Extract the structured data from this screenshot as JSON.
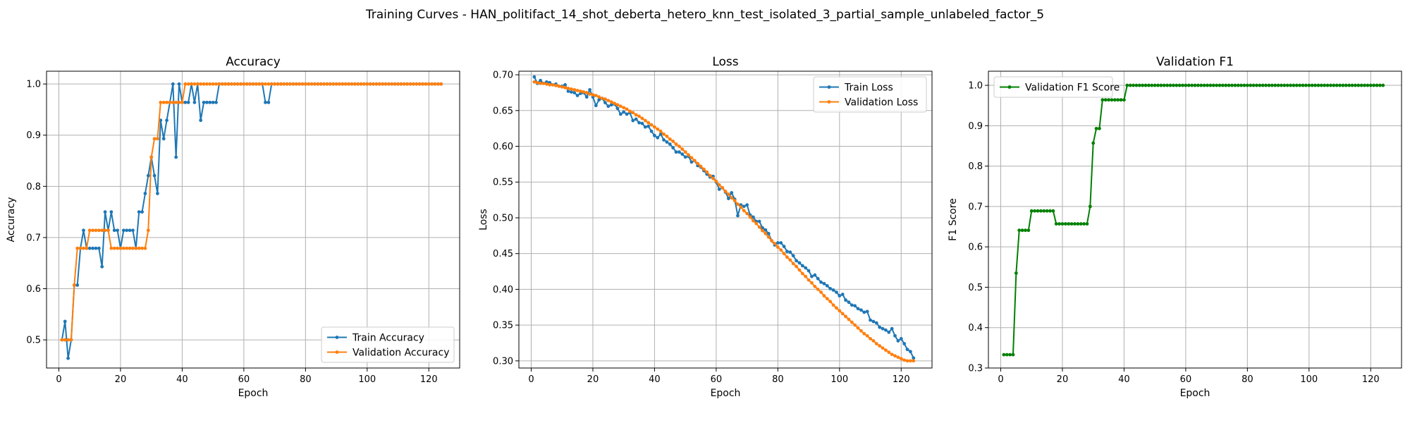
{
  "figure": {
    "suptitle": "Training Curves - HAN_politifact_14_shot_deberta_hetero_knn_test_isolated_3_partial_sample_unlabeled_factor_5"
  },
  "chart_data": [
    {
      "type": "line",
      "title": "Accuracy",
      "xlabel": "Epoch",
      "ylabel": "Accuracy",
      "xlim": [
        -4,
        130
      ],
      "ylim": [
        0.445,
        1.025
      ],
      "xticks": [
        0,
        20,
        40,
        60,
        80,
        100,
        120
      ],
      "yticks": [
        0.5,
        0.6,
        0.7,
        0.8,
        0.9,
        1.0
      ],
      "ytick_labels": [
        "0.5",
        "0.6",
        "0.7",
        "0.8",
        "0.9",
        "1.0"
      ],
      "grid": true,
      "legend_loc": "lower-right",
      "series": [
        {
          "name": "Train Accuracy",
          "color": "#1f77b4",
          "x_start": 1,
          "values": [
            0.5,
            0.536,
            0.464,
            0.5,
            0.607,
            0.607,
            0.679,
            0.714,
            0.679,
            0.679,
            0.679,
            0.679,
            0.679,
            0.643,
            0.75,
            0.714,
            0.75,
            0.714,
            0.714,
            0.679,
            0.714,
            0.714,
            0.714,
            0.714,
            0.679,
            0.75,
            0.75,
            0.786,
            0.821,
            0.857,
            0.821,
            0.786,
            0.929,
            0.893,
            0.929,
            0.964,
            1.0,
            0.857,
            1.0,
            0.964,
            0.964,
            0.964,
            1.0,
            0.964,
            1.0,
            0.929,
            0.964,
            0.964,
            0.964,
            0.964,
            0.964,
            1.0,
            1.0,
            1.0,
            1.0,
            1.0,
            1.0,
            1.0,
            1.0,
            1.0,
            1.0,
            1.0,
            1.0,
            1.0,
            1.0,
            1.0,
            0.964,
            0.964,
            1.0,
            1.0,
            1.0,
            1.0,
            1.0,
            1.0,
            1.0,
            1.0,
            1.0,
            1.0,
            1.0,
            1.0,
            1.0,
            1.0,
            1.0,
            1.0,
            1.0,
            1.0,
            1.0,
            1.0,
            1.0,
            1.0,
            1.0,
            1.0,
            1.0,
            1.0,
            1.0,
            1.0,
            1.0,
            1.0,
            1.0,
            1.0,
            1.0,
            1.0,
            1.0,
            1.0,
            1.0,
            1.0,
            1.0,
            1.0,
            1.0,
            1.0,
            1.0,
            1.0,
            1.0,
            1.0,
            1.0,
            1.0,
            1.0,
            1.0,
            1.0,
            1.0,
            1.0,
            1.0,
            1.0,
            1.0
          ]
        },
        {
          "name": "Validation Accuracy",
          "color": "#ff7f0e",
          "x_start": 1,
          "values": [
            0.5,
            0.5,
            0.5,
            0.5,
            0.607,
            0.679,
            0.679,
            0.679,
            0.679,
            0.714,
            0.714,
            0.714,
            0.714,
            0.714,
            0.714,
            0.714,
            0.679,
            0.679,
            0.679,
            0.679,
            0.679,
            0.679,
            0.679,
            0.679,
            0.679,
            0.679,
            0.679,
            0.679,
            0.714,
            0.857,
            0.893,
            0.893,
            0.964,
            0.964,
            0.964,
            0.964,
            0.964,
            0.964,
            0.964,
            0.964,
            1.0,
            1.0,
            1.0,
            1.0,
            1.0,
            1.0,
            1.0,
            1.0,
            1.0,
            1.0,
            1.0,
            1.0,
            1.0,
            1.0,
            1.0,
            1.0,
            1.0,
            1.0,
            1.0,
            1.0,
            1.0,
            1.0,
            1.0,
            1.0,
            1.0,
            1.0,
            1.0,
            1.0,
            1.0,
            1.0,
            1.0,
            1.0,
            1.0,
            1.0,
            1.0,
            1.0,
            1.0,
            1.0,
            1.0,
            1.0,
            1.0,
            1.0,
            1.0,
            1.0,
            1.0,
            1.0,
            1.0,
            1.0,
            1.0,
            1.0,
            1.0,
            1.0,
            1.0,
            1.0,
            1.0,
            1.0,
            1.0,
            1.0,
            1.0,
            1.0,
            1.0,
            1.0,
            1.0,
            1.0,
            1.0,
            1.0,
            1.0,
            1.0,
            1.0,
            1.0,
            1.0,
            1.0,
            1.0,
            1.0,
            1.0,
            1.0,
            1.0,
            1.0,
            1.0,
            1.0,
            1.0,
            1.0,
            1.0,
            1.0
          ]
        }
      ]
    },
    {
      "type": "line",
      "title": "Loss",
      "xlabel": "Epoch",
      "ylabel": "Loss",
      "xlim": [
        -4,
        130
      ],
      "ylim": [
        0.29,
        0.705
      ],
      "xticks": [
        0,
        20,
        40,
        60,
        80,
        100,
        120
      ],
      "yticks": [
        0.3,
        0.35,
        0.4,
        0.45,
        0.5,
        0.55,
        0.6,
        0.65,
        0.7
      ],
      "ytick_labels": [
        "0.30",
        "0.35",
        "0.40",
        "0.45",
        "0.50",
        "0.55",
        "0.60",
        "0.65",
        "0.70"
      ],
      "grid": true,
      "legend_loc": "upper-right",
      "series": [
        {
          "name": "Train Loss",
          "color": "#1f77b4",
          "x_start": 1,
          "values": [
            0.697,
            0.688,
            0.692,
            0.688,
            0.69,
            0.689,
            0.686,
            0.687,
            0.684,
            0.684,
            0.686,
            0.677,
            0.676,
            0.675,
            0.671,
            0.674,
            0.675,
            0.669,
            0.679,
            0.669,
            0.657,
            0.665,
            0.667,
            0.661,
            0.656,
            0.658,
            0.659,
            0.653,
            0.645,
            0.648,
            0.645,
            0.647,
            0.636,
            0.638,
            0.633,
            0.632,
            0.627,
            0.628,
            0.621,
            0.615,
            0.612,
            0.617,
            0.609,
            0.606,
            0.603,
            0.598,
            0.592,
            0.592,
            0.589,
            0.585,
            0.586,
            0.578,
            0.58,
            0.573,
            0.571,
            0.566,
            0.561,
            0.557,
            0.558,
            0.55,
            0.54,
            0.542,
            0.536,
            0.527,
            0.535,
            0.526,
            0.503,
            0.518,
            0.516,
            0.518,
            0.504,
            0.501,
            0.495,
            0.495,
            0.486,
            0.483,
            0.478,
            0.468,
            0.462,
            0.465,
            0.465,
            0.46,
            0.453,
            0.452,
            0.447,
            0.44,
            0.437,
            0.433,
            0.43,
            0.426,
            0.418,
            0.42,
            0.415,
            0.41,
            0.408,
            0.405,
            0.401,
            0.399,
            0.396,
            0.391,
            0.393,
            0.385,
            0.382,
            0.378,
            0.377,
            0.373,
            0.371,
            0.368,
            0.369,
            0.357,
            0.355,
            0.353,
            0.347,
            0.345,
            0.343,
            0.34,
            0.345,
            0.335,
            0.328,
            0.331,
            0.324,
            0.316,
            0.313,
            0.304
          ]
        },
        {
          "name": "Validation Loss",
          "color": "#ff7f0e",
          "x_start": 1,
          "values": [
            0.69,
            0.689,
            0.688,
            0.688,
            0.687,
            0.686,
            0.686,
            0.685,
            0.684,
            0.683,
            0.682,
            0.681,
            0.68,
            0.679,
            0.678,
            0.677,
            0.676,
            0.675,
            0.673,
            0.672,
            0.671,
            0.669,
            0.667,
            0.666,
            0.664,
            0.662,
            0.66,
            0.658,
            0.656,
            0.654,
            0.652,
            0.649,
            0.647,
            0.644,
            0.642,
            0.639,
            0.636,
            0.633,
            0.63,
            0.627,
            0.624,
            0.621,
            0.617,
            0.614,
            0.61,
            0.607,
            0.603,
            0.6,
            0.596,
            0.592,
            0.588,
            0.584,
            0.58,
            0.576,
            0.572,
            0.568,
            0.564,
            0.559,
            0.555,
            0.551,
            0.546,
            0.542,
            0.537,
            0.533,
            0.528,
            0.524,
            0.519,
            0.515,
            0.51,
            0.506,
            0.501,
            0.496,
            0.492,
            0.487,
            0.482,
            0.478,
            0.473,
            0.468,
            0.464,
            0.459,
            0.455,
            0.45,
            0.445,
            0.441,
            0.436,
            0.432,
            0.427,
            0.422,
            0.418,
            0.413,
            0.409,
            0.404,
            0.4,
            0.396,
            0.391,
            0.387,
            0.383,
            0.378,
            0.374,
            0.37,
            0.366,
            0.362,
            0.358,
            0.354,
            0.35,
            0.346,
            0.342,
            0.338,
            0.335,
            0.331,
            0.328,
            0.324,
            0.321,
            0.318,
            0.315,
            0.312,
            0.309,
            0.307,
            0.305,
            0.303,
            0.301,
            0.3,
            0.3,
            0.3
          ]
        }
      ]
    },
    {
      "type": "line",
      "title": "Validation F1",
      "xlabel": "Epoch",
      "ylabel": "F1 Score",
      "xlim": [
        -4,
        130
      ],
      "ylim": [
        0.3,
        1.035
      ],
      "xticks": [
        0,
        20,
        40,
        60,
        80,
        100,
        120
      ],
      "yticks": [
        0.3,
        0.4,
        0.5,
        0.6,
        0.7,
        0.8,
        0.9,
        1.0
      ],
      "ytick_labels": [
        "0.3",
        "0.4",
        "0.5",
        "0.6",
        "0.7",
        "0.8",
        "0.9",
        "1.0"
      ],
      "grid": true,
      "legend_loc": "upper-left",
      "series": [
        {
          "name": "Validation F1 Score",
          "color": "#008000",
          "x_start": 1,
          "values": [
            0.333,
            0.333,
            0.333,
            0.333,
            0.535,
            0.641,
            0.641,
            0.641,
            0.641,
            0.689,
            0.689,
            0.689,
            0.689,
            0.689,
            0.689,
            0.689,
            0.689,
            0.657,
            0.657,
            0.657,
            0.657,
            0.657,
            0.657,
            0.657,
            0.657,
            0.657,
            0.657,
            0.657,
            0.7,
            0.857,
            0.893,
            0.893,
            0.964,
            0.964,
            0.964,
            0.964,
            0.964,
            0.964,
            0.964,
            0.964,
            1.0,
            1.0,
            1.0,
            1.0,
            1.0,
            1.0,
            1.0,
            1.0,
            1.0,
            1.0,
            1.0,
            1.0,
            1.0,
            1.0,
            1.0,
            1.0,
            1.0,
            1.0,
            1.0,
            1.0,
            1.0,
            1.0,
            1.0,
            1.0,
            1.0,
            1.0,
            1.0,
            1.0,
            1.0,
            1.0,
            1.0,
            1.0,
            1.0,
            1.0,
            1.0,
            1.0,
            1.0,
            1.0,
            1.0,
            1.0,
            1.0,
            1.0,
            1.0,
            1.0,
            1.0,
            1.0,
            1.0,
            1.0,
            1.0,
            1.0,
            1.0,
            1.0,
            1.0,
            1.0,
            1.0,
            1.0,
            1.0,
            1.0,
            1.0,
            1.0,
            1.0,
            1.0,
            1.0,
            1.0,
            1.0,
            1.0,
            1.0,
            1.0,
            1.0,
            1.0,
            1.0,
            1.0,
            1.0,
            1.0,
            1.0,
            1.0,
            1.0,
            1.0,
            1.0,
            1.0,
            1.0,
            1.0,
            1.0,
            1.0
          ]
        }
      ]
    }
  ]
}
